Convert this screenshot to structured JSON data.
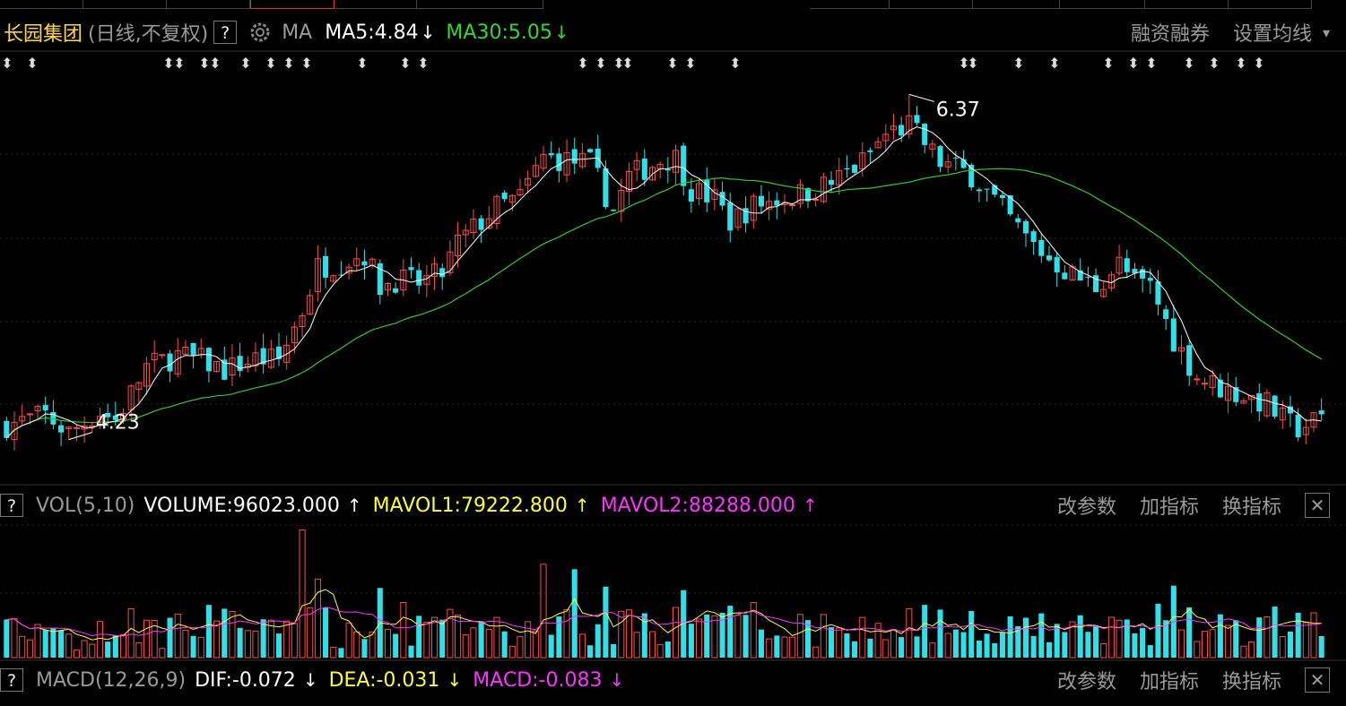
{
  "header": {
    "stock_name": "长园集团",
    "stock_mode": "(日线,不复权)",
    "help": "?",
    "ma_label": "MA",
    "ma5": "MA5:4.84",
    "ma30": "MA30:5.05",
    "arrow_down": "↓",
    "margin_link": "融资融券",
    "set_ma_link": "设置均线",
    "dropdown_icon": "▾"
  },
  "vol_header": {
    "help": "?",
    "name": "VOL(5,10)",
    "volume": "VOLUME:96023.000",
    "mavol1": "MAVOL1:79222.800",
    "mavol2": "MAVOL2:88288.000",
    "arrow_up": "↑",
    "modify": "改参数",
    "add": "加指标",
    "swap": "换指标",
    "close": "✕"
  },
  "macd_header": {
    "help": "?",
    "name": "MACD(12,26,9)",
    "dif": "DIF:-0.072",
    "dea": "DEA:-0.031",
    "macd": "MACD:-0.083",
    "arrow_down": "↓",
    "modify": "改参数",
    "add": "加指标",
    "swap": "换指标",
    "close": "✕"
  },
  "colors": {
    "up": "#ff4a4a",
    "down": "#30e0e8",
    "ma5": "#ffffff",
    "ma30": "#32c832",
    "mavol1": "#ffff33",
    "mavol2": "#ff33ff",
    "grid": "#2a2a2a",
    "label_gray": "#9a9a9a"
  },
  "chart_data": {
    "type": "candlestick",
    "annotations": [
      {
        "text": "6.37",
        "kind": "high"
      },
      {
        "text": "4.23",
        "kind": "low"
      }
    ],
    "price_range": [
      4.0,
      6.6
    ],
    "candles_count": 170,
    "anchor_points": [
      [
        0,
        4.32
      ],
      [
        5,
        4.38
      ],
      [
        8,
        4.27
      ],
      [
        12,
        4.4
      ],
      [
        14,
        4.35
      ],
      [
        18,
        4.68
      ],
      [
        22,
        4.75
      ],
      [
        25,
        4.72
      ],
      [
        28,
        4.66
      ],
      [
        32,
        4.73
      ],
      [
        35,
        4.72
      ],
      [
        38,
        5.03
      ],
      [
        40,
        5.3
      ],
      [
        43,
        5.33
      ],
      [
        46,
        5.38
      ],
      [
        48,
        5.18
      ],
      [
        50,
        5.22
      ],
      [
        53,
        5.2
      ],
      [
        56,
        5.26
      ],
      [
        58,
        5.45
      ],
      [
        61,
        5.58
      ],
      [
        63,
        5.67
      ],
      [
        66,
        5.73
      ],
      [
        69,
        5.98
      ],
      [
        72,
        5.96
      ],
      [
        75,
        5.94
      ],
      [
        78,
        5.65
      ],
      [
        80,
        5.86
      ],
      [
        84,
        5.96
      ],
      [
        86,
        5.98
      ],
      [
        88,
        5.78
      ],
      [
        91,
        5.72
      ],
      [
        93,
        5.58
      ],
      [
        96,
        5.68
      ],
      [
        99,
        5.72
      ],
      [
        102,
        5.75
      ],
      [
        106,
        5.82
      ],
      [
        110,
        5.95
      ],
      [
        113,
        6.12
      ],
      [
        116,
        6.18
      ],
      [
        120,
        5.95
      ],
      [
        124,
        5.87
      ],
      [
        128,
        5.65
      ],
      [
        131,
        5.48
      ],
      [
        134,
        5.35
      ],
      [
        137,
        5.25
      ],
      [
        140,
        5.18
      ],
      [
        143,
        5.32
      ],
      [
        145,
        5.2
      ],
      [
        147,
        5.18
      ],
      [
        150,
        4.85
      ],
      [
        153,
        4.62
      ],
      [
        156,
        4.55
      ],
      [
        159,
        4.5
      ],
      [
        162,
        4.45
      ],
      [
        164,
        4.35
      ],
      [
        166,
        4.3
      ],
      [
        168,
        4.34
      ],
      [
        170,
        4.38
      ]
    ],
    "volume_note": "daily volume bars with MAVOL1/MAVOL2 overlays",
    "macd_note": "DIF/DEA/MACD lines"
  }
}
